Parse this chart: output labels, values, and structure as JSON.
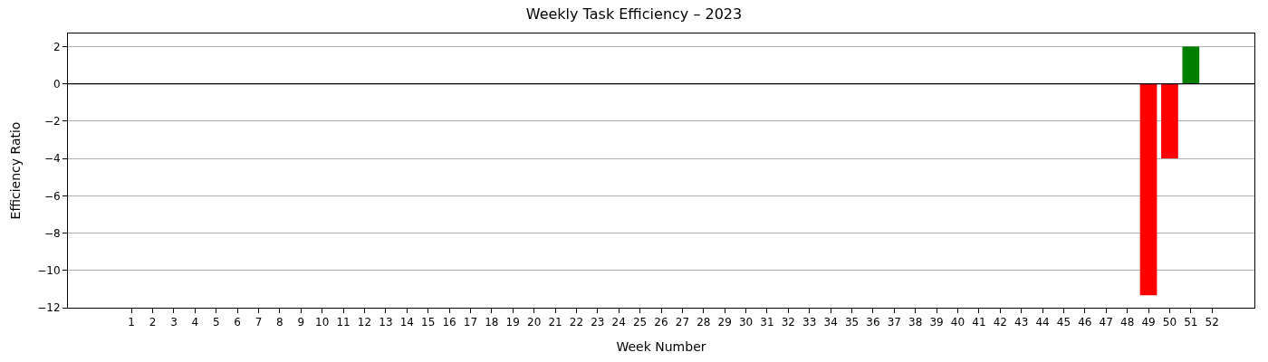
{
  "chart_data": {
    "type": "bar",
    "title": "Weekly Task Efficiency – 2023",
    "xlabel": "Week Number",
    "ylabel": "Efficiency Ratio",
    "x": [
      49,
      50,
      51
    ],
    "values": [
      -11.33,
      -4,
      2
    ],
    "colors": [
      "#ff0000",
      "#ff0000",
      "#008000"
    ],
    "xlim": [
      -2,
      54
    ],
    "xticks": [
      1,
      2,
      3,
      4,
      5,
      6,
      7,
      8,
      9,
      10,
      11,
      12,
      13,
      14,
      15,
      16,
      17,
      18,
      19,
      20,
      21,
      22,
      23,
      24,
      25,
      26,
      27,
      28,
      29,
      30,
      31,
      32,
      33,
      34,
      35,
      36,
      37,
      38,
      39,
      40,
      41,
      42,
      43,
      44,
      45,
      46,
      47,
      48,
      49,
      50,
      51,
      52
    ],
    "ylim": [
      -12,
      2.7
    ],
    "yticks": [
      -12,
      -10,
      -8,
      -6,
      -4,
      -2,
      0,
      2
    ],
    "grid": "y",
    "ref_lines": [
      {
        "axis": "y",
        "value": 0,
        "color": "#000000",
        "line_style": "solid"
      }
    ]
  }
}
